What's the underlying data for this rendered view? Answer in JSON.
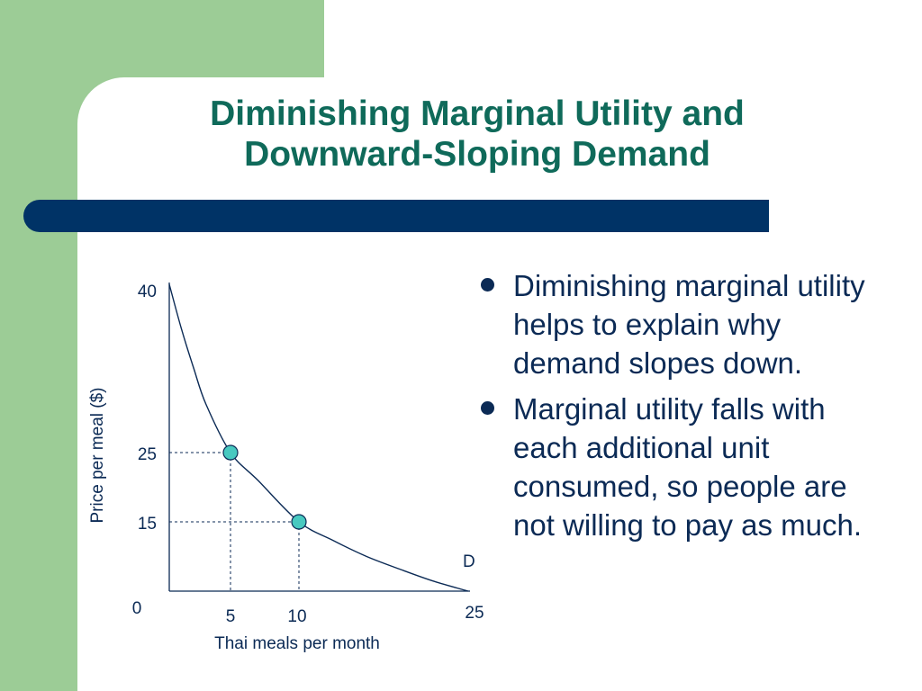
{
  "slide": {
    "title_lines": [
      "Diminishing Marginal Utility and",
      "Downward-Sloping Demand"
    ],
    "bullets": [
      "Diminishing marginal utility helps to explain why demand slopes down.",
      "Marginal utility falls with each additional unit consumed, so people are not willing to pay as much."
    ]
  },
  "colors": {
    "green_panel": "#9ccc96",
    "title": "#0f6a5a",
    "bar": "#003366",
    "text": "#0b2a55",
    "point_fill": "#48c9c0"
  },
  "chart_data": {
    "type": "line",
    "xlabel": "Thai meals per month",
    "ylabel": "Price per meal ($)",
    "x_ticks": [
      "0",
      "5",
      "10",
      "25"
    ],
    "y_ticks": [
      "40",
      "25",
      "15"
    ],
    "xlim": [
      0,
      25
    ],
    "ylim": [
      0,
      40
    ],
    "series": [
      {
        "name": "D",
        "x": [
          0,
          1,
          2,
          3,
          5,
          7,
          10,
          13,
          16,
          19,
          22,
          25
        ],
        "y": [
          40,
          36,
          32.5,
          29.3,
          25,
          21,
          15,
          11,
          7.5,
          4.7,
          2.1,
          0
        ]
      }
    ],
    "points": [
      {
        "x": 5,
        "y": 25
      },
      {
        "x": 10,
        "y": 15
      }
    ],
    "grid": false
  }
}
